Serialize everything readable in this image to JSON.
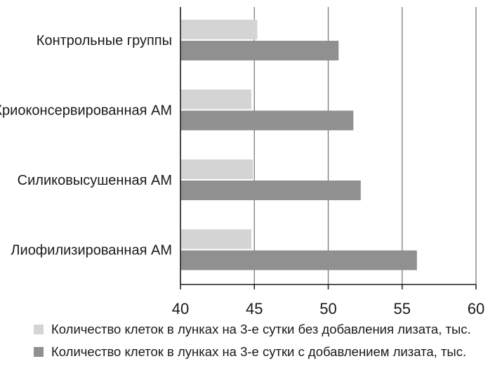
{
  "chart_data": {
    "type": "bar",
    "orientation": "horizontal",
    "categories": [
      "Контрольные группы",
      "Криоконсервированная АМ",
      "Силиковысушенная АМ",
      "Лиофилизированная АМ"
    ],
    "series": [
      {
        "name": "Количество клеток в лунках на 3-е сутки без добавления лизата, тыс.",
        "color": "#d4d4d4",
        "values": [
          45.2,
          44.8,
          44.9,
          44.8
        ]
      },
      {
        "name": "Количество клеток в лунках на 3-е сутки с добавлением лизата, тыс.",
        "color": "#909090",
        "values": [
          50.7,
          51.7,
          52.2,
          56.0
        ]
      }
    ],
    "xlim": [
      40,
      60
    ],
    "xticks": [
      40,
      45,
      50,
      55,
      60
    ],
    "grid": "vertical",
    "legend_position": "bottom"
  }
}
